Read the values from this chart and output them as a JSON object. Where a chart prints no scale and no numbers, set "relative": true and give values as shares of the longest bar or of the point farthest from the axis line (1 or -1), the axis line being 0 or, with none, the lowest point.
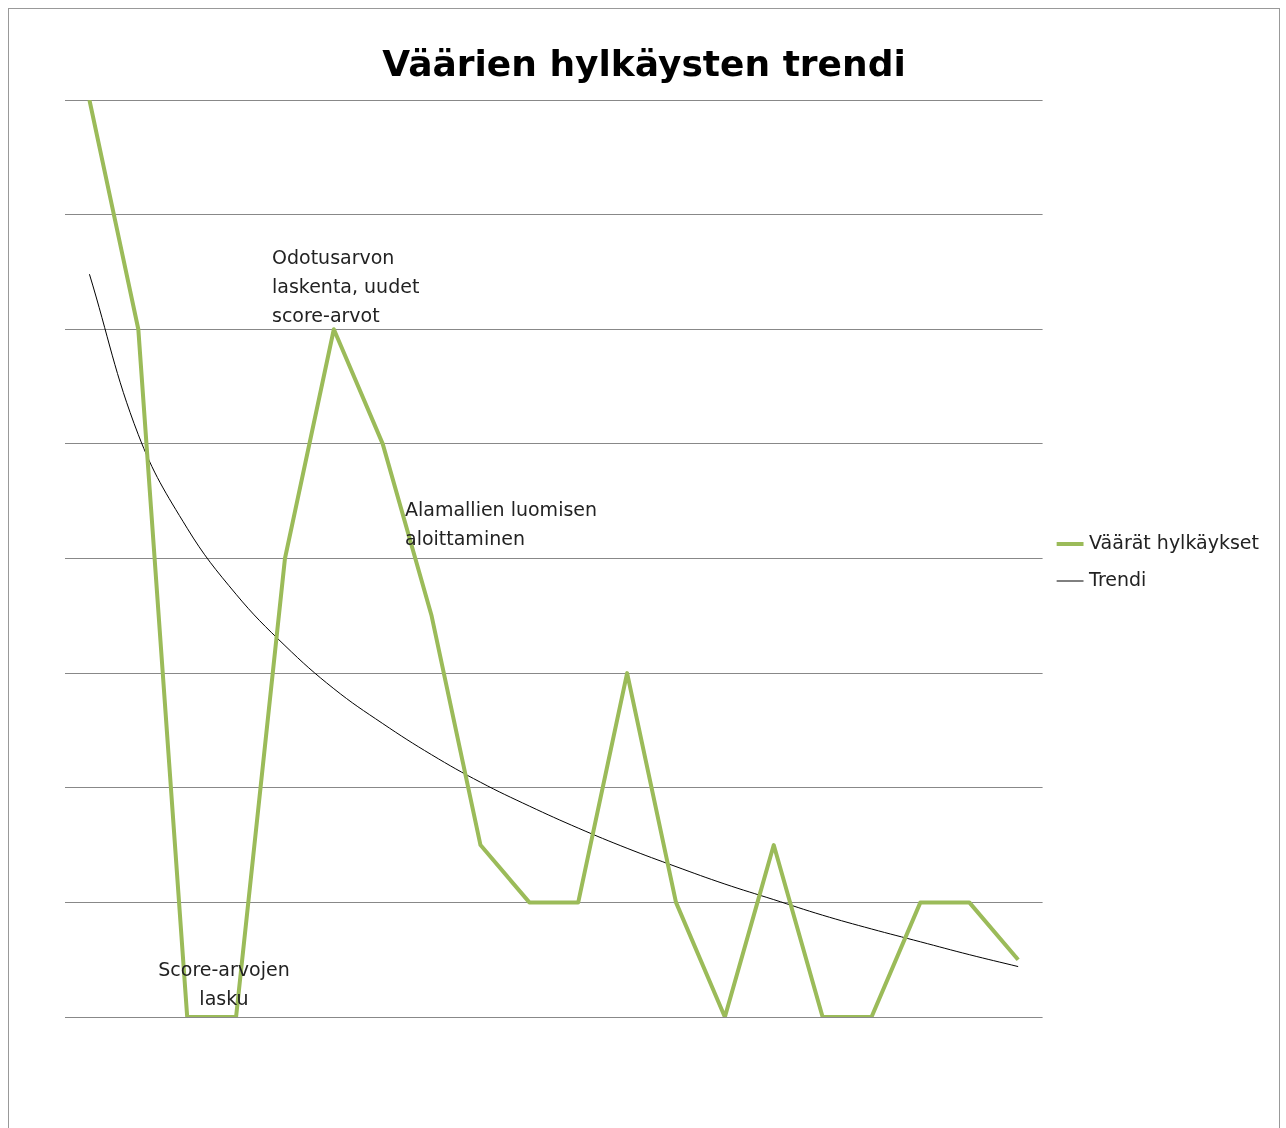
{
  "chart_data": {
    "type": "line",
    "title": "Väärien hylkäysten trendi",
    "relative": true,
    "grid": "y",
    "legend": "right",
    "categories": [
      null,
      null,
      null,
      null,
      null,
      null,
      null,
      null,
      null,
      null,
      null,
      null,
      null,
      null,
      null,
      null,
      null,
      null,
      null,
      null
    ],
    "series": [
      {
        "name": "Väärät hylkäykset",
        "color": "#9bbb59",
        "values": [
          1,
          0.75,
          0,
          0,
          0.5,
          0.75,
          0.625,
          0.4375,
          0.1875,
          0.125,
          0.125,
          0.375,
          0.125,
          0,
          0.1875,
          0,
          0,
          0.125,
          0.125,
          0.0625
        ]
      },
      {
        "name": "Trendi",
        "color": "#000000",
        "values": [
          0.81,
          0.635,
          0.533,
          0.461,
          0.405,
          0.358,
          0.32,
          0.286,
          0.256,
          0.23,
          0.206,
          0.184,
          0.164,
          0.145,
          0.128,
          0.111,
          0.096,
          0.082,
          0.068,
          0.055
        ]
      }
    ],
    "annotations": [
      "Odotusarvon laskenta, uudet score-arvot",
      "Alamallien luomisen aloittaminen",
      "Score-arvojen lasku"
    ]
  }
}
